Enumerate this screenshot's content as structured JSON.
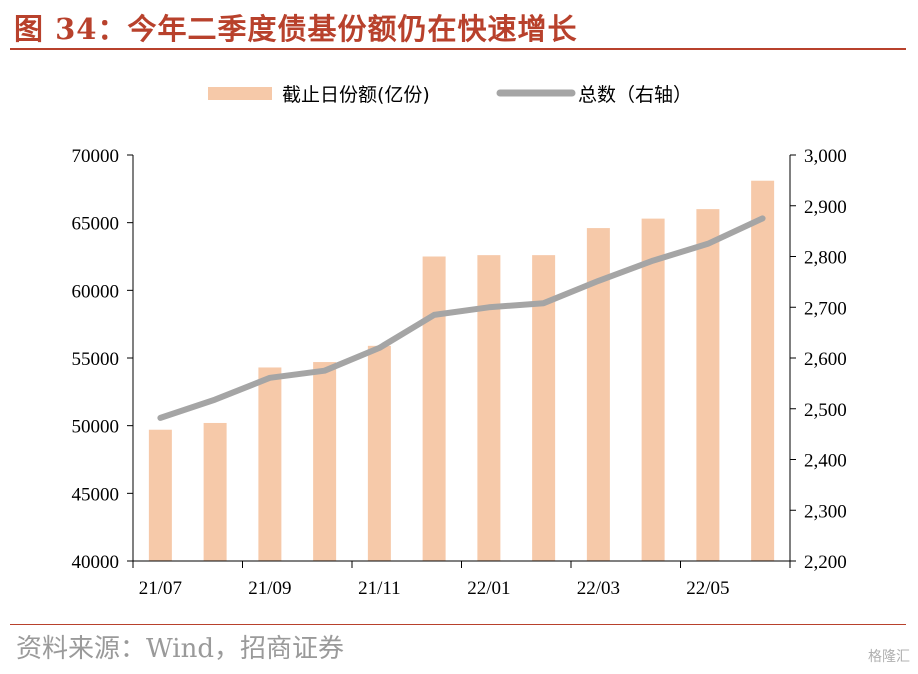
{
  "header": {
    "title": "图 34：今年二季度债基份额仍在快速增长"
  },
  "footer": {
    "source": "资料来源：Wind，招商证券",
    "watermark": "格隆汇"
  },
  "chart_data": {
    "type": "bar+line",
    "title": "",
    "legend_position": "top",
    "x_tick_labels": [
      "21/07",
      "21/09",
      "21/11",
      "22/01",
      "22/03",
      "22/05"
    ],
    "categories": [
      "21/07",
      "21/08",
      "21/09",
      "21/10",
      "21/11",
      "21/12",
      "22/01",
      "22/02",
      "22/03",
      "22/04",
      "22/05",
      "22/06"
    ],
    "series": [
      {
        "name": "截止日份额(亿份)",
        "type": "bar",
        "axis": "left",
        "color": "#f6c9a9",
        "values": [
          49700,
          50200,
          54300,
          54700,
          55900,
          62500,
          62600,
          62600,
          64600,
          65300,
          66000,
          68100
        ]
      },
      {
        "name": "总数（右轴）",
        "type": "line",
        "axis": "right",
        "color": "#a5a5a5",
        "values": [
          2482,
          2518,
          2561,
          2575,
          2620,
          2685,
          2700,
          2708,
          2752,
          2792,
          2825,
          2875
        ]
      }
    ],
    "y_left": {
      "min": 40000,
      "max": 70000,
      "step": 5000,
      "ticks": [
        "40000",
        "45000",
        "50000",
        "55000",
        "60000",
        "65000",
        "70000"
      ]
    },
    "y_right": {
      "min": 2200,
      "max": 3000,
      "step": 100,
      "ticks": [
        "2,200",
        "2,300",
        "2,400",
        "2,500",
        "2,600",
        "2,700",
        "2,800",
        "2,900",
        "3,000"
      ]
    },
    "grid": false
  }
}
